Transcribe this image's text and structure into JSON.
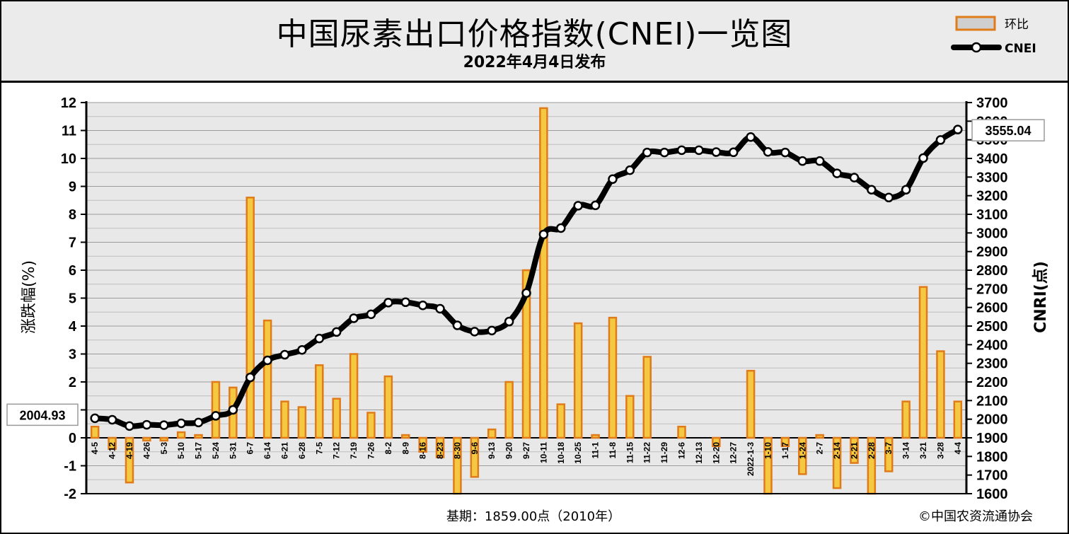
{
  "header": {
    "title": "中国尿素出口价格指数(CNEI)一览图",
    "subtitle": "2022年4月4日发布"
  },
  "footer": {
    "base_period": "基期：1859.00点（2010年）",
    "copyright": "©中国农资流通协会"
  },
  "colors": {
    "bar_fill": "#f5c842",
    "bar_stroke": "#e07b1a",
    "line": "#000000",
    "marker_fill": "#ffffff",
    "plot_bg": "#e8e8e8",
    "header_bg": "#ebebeb"
  },
  "chart_data": {
    "type": "bar",
    "title": "",
    "xlabel": "",
    "ylabel": "涨跌幅(%)",
    "y2label": "CNRI(点)",
    "ylim": [
      -2,
      12
    ],
    "y2lim": [
      1600,
      3700
    ],
    "y_ticks": [
      "-2",
      "-1",
      "0",
      "1",
      "2",
      "3",
      "4",
      "5",
      "6",
      "7",
      "8",
      "9",
      "10",
      "11",
      "12"
    ],
    "y2_ticks": [
      "1600",
      "1700",
      "1800",
      "1900",
      "2000",
      "2100",
      "2200",
      "2300",
      "2400",
      "2500",
      "2600",
      "2700",
      "2800",
      "2900",
      "3000",
      "3100",
      "3200",
      "3300",
      "3400",
      "3500",
      "3600",
      "3700"
    ],
    "grid": true,
    "legend_position": "top-right",
    "categories": [
      "4-5",
      "4-12",
      "4-19",
      "4-26",
      "5-3",
      "5-10",
      "5-17",
      "5-24",
      "5-31",
      "6-7",
      "6-14",
      "6-21",
      "6-28",
      "7-5",
      "7-12",
      "7-19",
      "7-26",
      "8-2",
      "8-9",
      "8-16",
      "8-23",
      "8-30",
      "9-6",
      "9-13",
      "9-20",
      "9-27",
      "10-11",
      "10-18",
      "10-25",
      "11-1",
      "11-8",
      "11-15",
      "11-22",
      "11-29",
      "12-6",
      "12-13",
      "12-20",
      "12-27",
      "2022-1-3",
      "1-10",
      "1-17",
      "1-24",
      "2-7",
      "2-14",
      "2-21",
      "2-28",
      "3-7",
      "3-14",
      "3-21",
      "3-28",
      "4-4"
    ],
    "series": [
      {
        "name": "环比",
        "type": "bar",
        "axis": "left",
        "values": [
          0.4,
          -0.4,
          -1.6,
          -0.1,
          -0.1,
          0.2,
          0.1,
          2.0,
          1.8,
          8.6,
          4.2,
          1.3,
          1.1,
          2.6,
          1.4,
          3.0,
          0.9,
          2.2,
          0.1,
          -0.5,
          -0.7,
          -2.0,
          -1.4,
          0.3,
          2.0,
          6.0,
          11.8,
          1.2,
          4.1,
          0.1,
          4.3,
          1.5,
          2.9,
          0.0,
          0.4,
          0.0,
          -0.3,
          0.0,
          2.4,
          -2.0,
          -0.3,
          -1.3,
          0.1,
          -1.8,
          -0.9,
          -2.0,
          -1.2,
          1.3,
          5.4,
          3.1,
          1.3
        ]
      },
      {
        "name": "CNEI",
        "type": "line",
        "axis": "right",
        "values": [
          2004.93,
          1997,
          1963,
          1970,
          1968,
          1978,
          1982,
          2018,
          2050,
          2224,
          2316,
          2346,
          2372,
          2433,
          2468,
          2542,
          2563,
          2626,
          2628,
          2611,
          2593,
          2504,
          2470,
          2476,
          2524,
          2677,
          2992,
          3026,
          3146,
          3148,
          3289,
          3337,
          3432,
          3432,
          3444,
          3444,
          3434,
          3433,
          3515,
          3435,
          3432,
          3386,
          3386,
          3320,
          3297,
          3232,
          3190,
          3232,
          3402,
          3499,
          3555.04
        ]
      }
    ],
    "annotations": [
      "2004.93",
      "3555.04"
    ]
  }
}
